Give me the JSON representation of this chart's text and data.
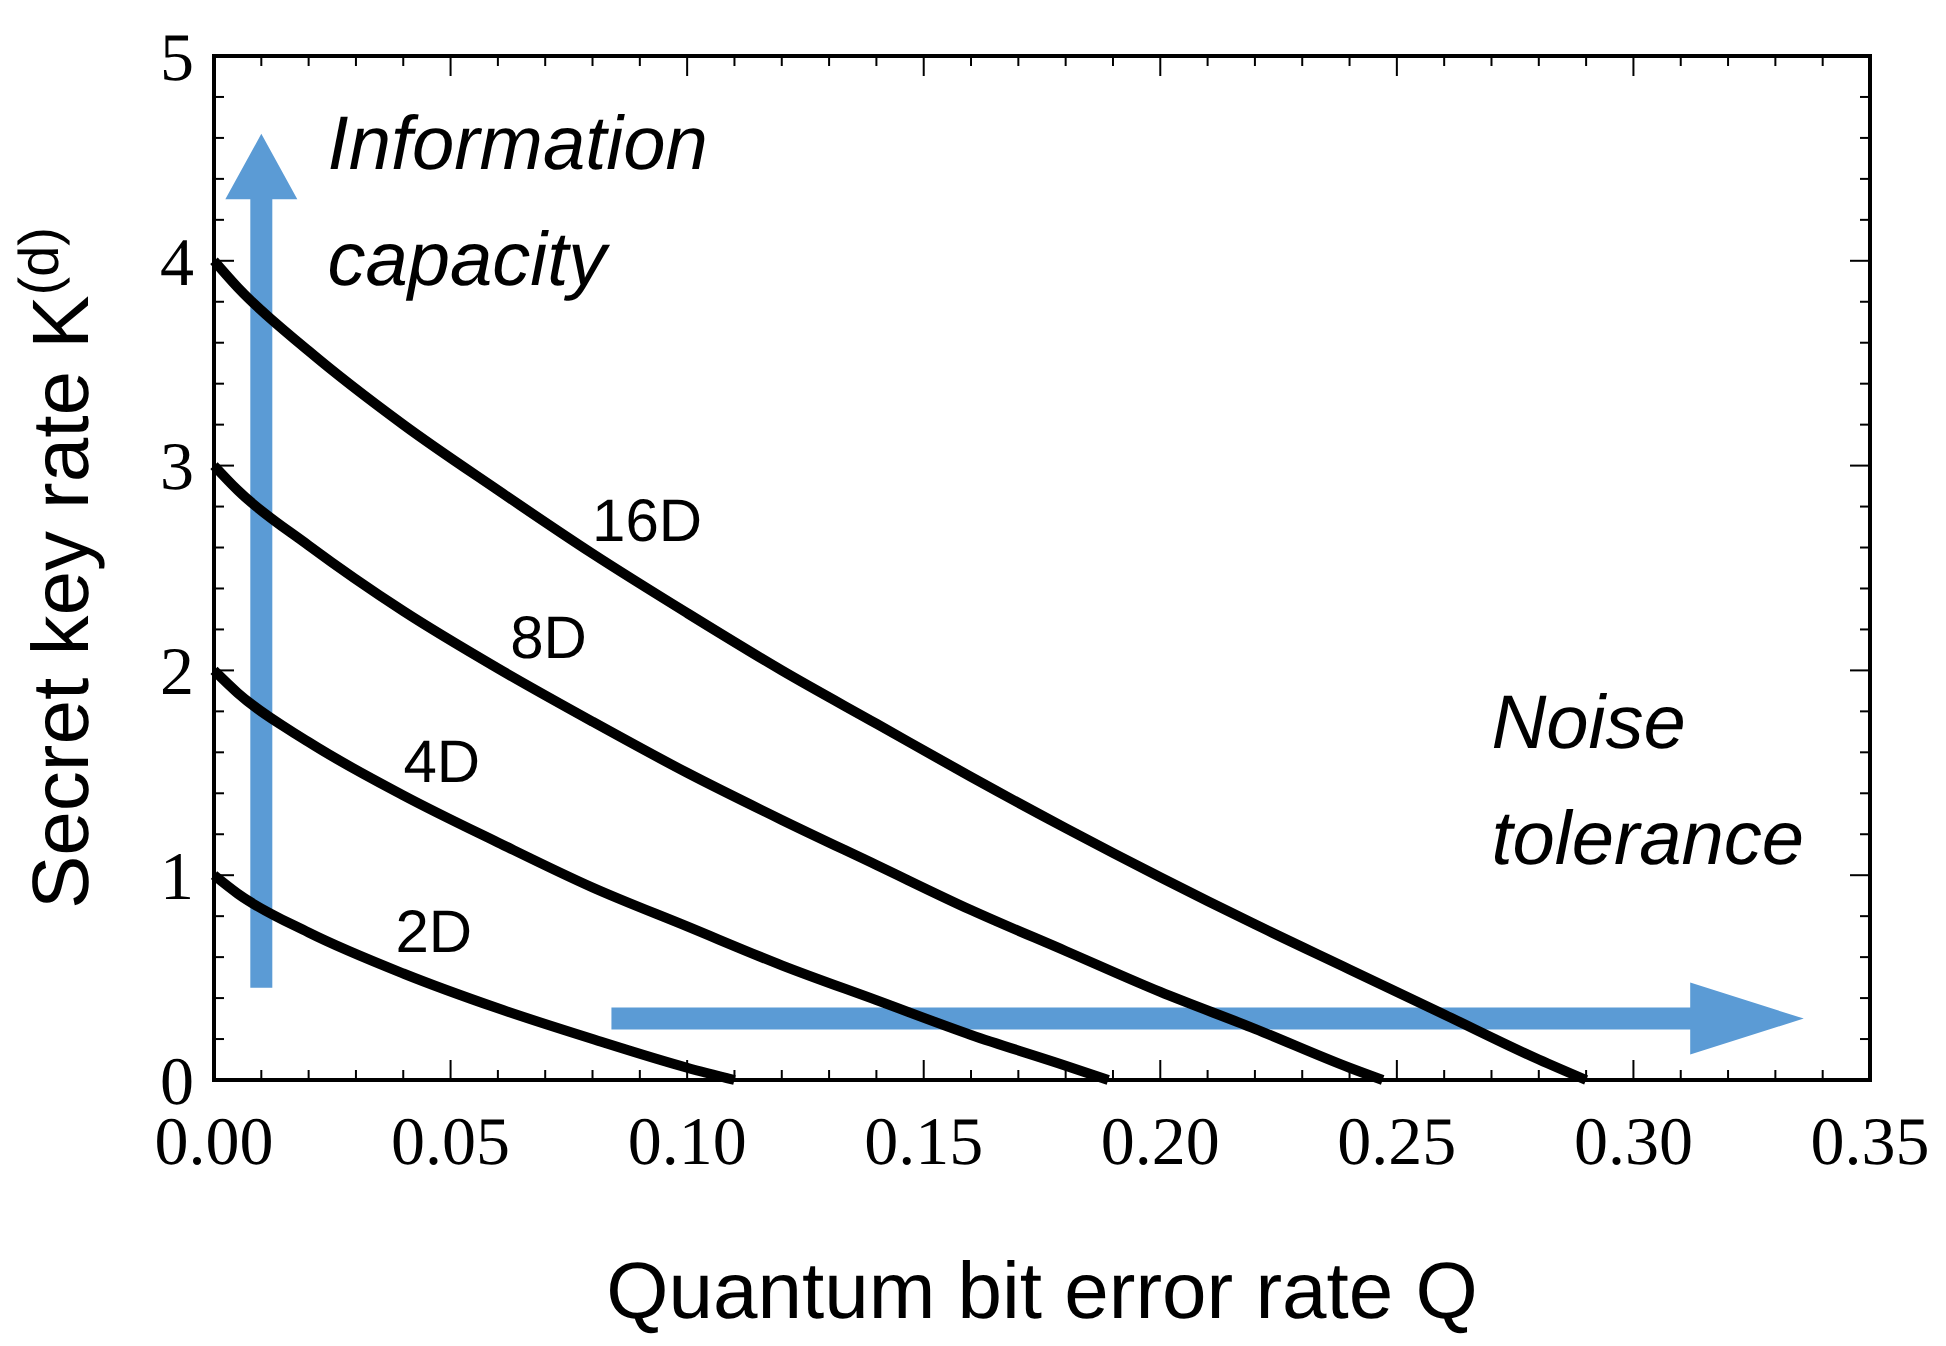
{
  "chart_data": {
    "type": "line",
    "xlabel": "Quantum bit error rate Q",
    "ylabel": "Secret key rate K$^{(d)}$",
    "annotations": [
      "Information capacity",
      "Noise tolerance"
    ],
    "xlim": [
      0,
      0.35
    ],
    "ylim": [
      0,
      5
    ],
    "xticks": [
      {
        "value": 0,
        "label": "0.00"
      },
      {
        "value": 0.05,
        "label": "0.05"
      },
      {
        "value": 0.1,
        "label": "0.10"
      },
      {
        "value": 0.15,
        "label": "0.15"
      },
      {
        "value": 0.2,
        "label": "0.20"
      },
      {
        "value": 0.25,
        "label": "0.25"
      },
      {
        "value": 0.3,
        "label": "0.30"
      },
      {
        "value": 0.35,
        "label": "0.35"
      }
    ],
    "yticks": [
      0,
      1,
      2,
      3,
      4,
      5
    ],
    "grid": false,
    "marker": "none",
    "line_style": "solid",
    "series": [
      {
        "name": "2D",
        "color": "#000000",
        "x": [
          0,
          0.005,
          0.02,
          0.04,
          0.06,
          0.08,
          0.1,
          0.11
        ],
        "values": [
          1,
          0.91,
          0.72,
          0.52,
          0.35,
          0.2,
          0.06,
          0
        ]
      },
      {
        "name": "4D",
        "color": "#000000",
        "x": [
          0,
          0.005,
          0.02,
          0.04,
          0.06,
          0.08,
          0.1,
          0.12,
          0.14,
          0.16,
          0.18,
          0.189
        ],
        "values": [
          2,
          1.89,
          1.65,
          1.39,
          1.16,
          0.94,
          0.75,
          0.56,
          0.39,
          0.22,
          0.07,
          0
        ]
      },
      {
        "name": "8D",
        "color": "#000000",
        "x": [
          0,
          0.005,
          0.02,
          0.04,
          0.06,
          0.08,
          0.1,
          0.12,
          0.14,
          0.16,
          0.18,
          0.2,
          0.22,
          0.24,
          0.247
        ],
        "values": [
          3,
          2.88,
          2.61,
          2.29,
          2.01,
          1.75,
          1.5,
          1.27,
          1.05,
          0.83,
          0.63,
          0.43,
          0.25,
          0.06,
          0
        ]
      },
      {
        "name": "16D",
        "color": "#000000",
        "x": [
          0,
          0.005,
          0.02,
          0.04,
          0.06,
          0.08,
          0.1,
          0.12,
          0.14,
          0.16,
          0.18,
          0.2,
          0.22,
          0.24,
          0.26,
          0.28,
          0.29
        ],
        "values": [
          4,
          3.87,
          3.56,
          3.2,
          2.88,
          2.57,
          2.28,
          2,
          1.74,
          1.48,
          1.23,
          0.99,
          0.76,
          0.54,
          0.32,
          0.1,
          0
        ]
      }
    ]
  }
}
